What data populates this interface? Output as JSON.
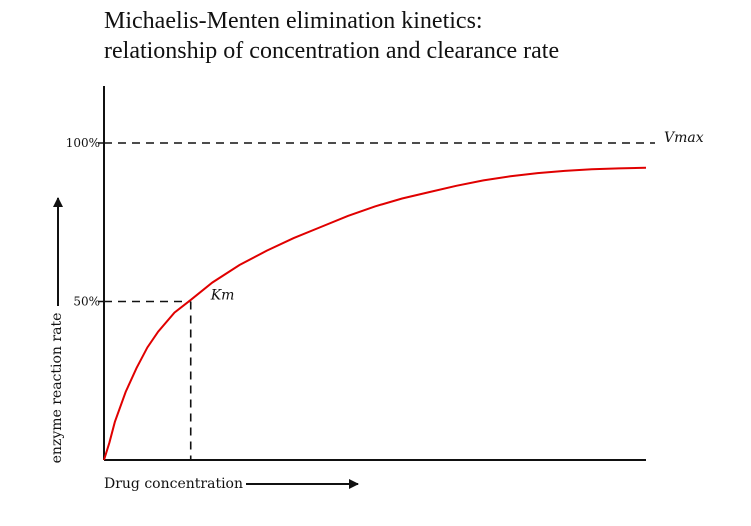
{
  "chart_data": {
    "type": "line",
    "title": "Michaelis-Menten elimination kinetics:",
    "subtitle": "relationship of concentration and clearance rate",
    "xlabel": "Drug concentration",
    "ylabel": "enzyme reaction rate",
    "ylim": [
      0,
      100
    ],
    "xlim": [
      0,
      100
    ],
    "y_ticks": [
      "100%",
      "50%"
    ],
    "y_tick_values": [
      100,
      50
    ],
    "series": [
      {
        "color": "#e00000",
        "x": [
          0,
          1,
          2,
          4,
          6,
          8,
          10,
          13,
          16,
          20,
          25,
          30,
          35,
          40,
          45,
          50,
          55,
          60,
          65,
          70,
          75,
          80,
          85,
          90,
          95,
          100
        ],
        "y": [
          0,
          5.5,
          12,
          21.5,
          29,
          35.5,
          40.5,
          46.5,
          50.5,
          56,
          61.5,
          66,
          70,
          73.5,
          77,
          80,
          82.5,
          84.5,
          86.5,
          88.2,
          89.5,
          90.5,
          91.2,
          91.7,
          92,
          92.2
        ]
      }
    ],
    "reference_lines": {
      "vmax_value": 100,
      "half_value": 50,
      "km_x": 16
    },
    "annotations": {
      "vmax_label": "Vmax",
      "km_label": "Km"
    },
    "colors": {
      "curve": "#e00000",
      "axes": "#111111"
    },
    "grid": false,
    "legend": "none"
  }
}
